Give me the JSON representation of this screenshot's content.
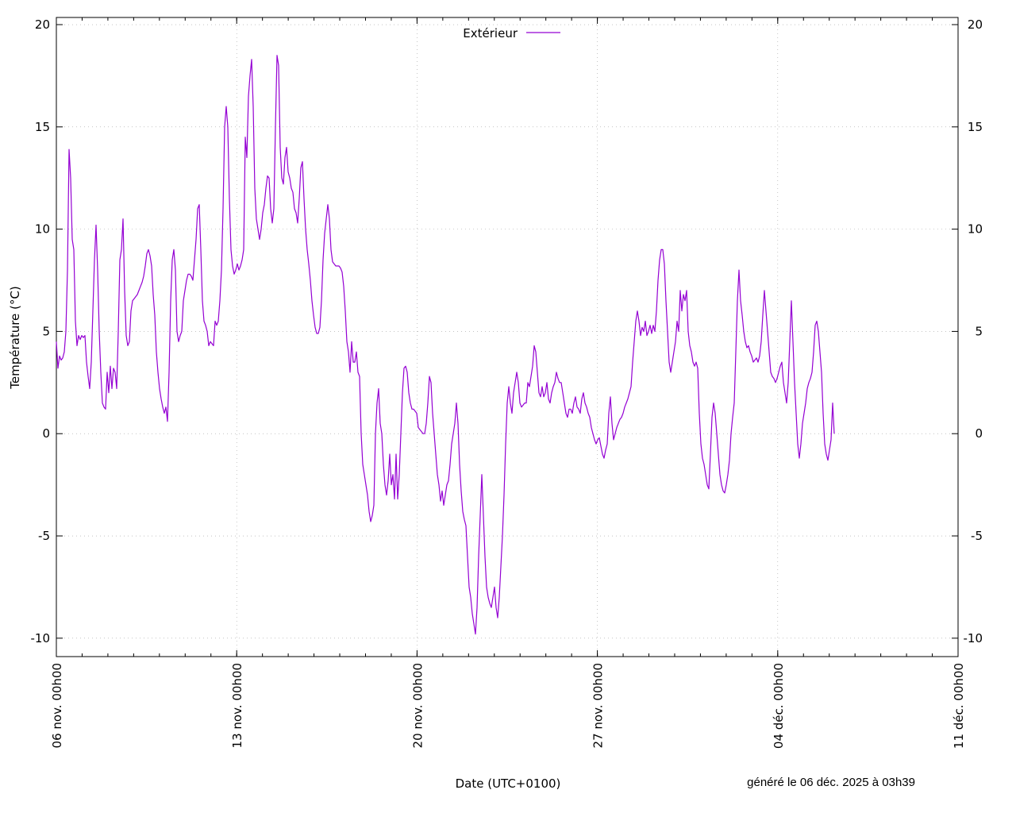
{
  "chart_data": {
    "type": "line",
    "title": "",
    "xlabel": "Date (UTC+0100)",
    "ylabel": "Température (°C)",
    "footer": "généré le 06 déc. 2025 à 03h39",
    "xlim_days": [
      0,
      35
    ],
    "ylim": [
      -10.9,
      20.35
    ],
    "x_unit": "days since 06 nov. 00h00",
    "x_ticks": [
      {
        "value": 0,
        "label": "06 nov. 00h00"
      },
      {
        "value": 7,
        "label": "13 nov. 00h00"
      },
      {
        "value": 14,
        "label": "20 nov. 00h00"
      },
      {
        "value": 21,
        "label": "27 nov. 00h00"
      },
      {
        "value": 28,
        "label": "04 déc. 00h00"
      },
      {
        "value": 35,
        "label": "11 déc. 00h00"
      }
    ],
    "x_minor_step_days": 1,
    "y_ticks": [
      {
        "value": 20,
        "label": "20"
      },
      {
        "value": 15,
        "label": "15"
      },
      {
        "value": 10,
        "label": "10"
      },
      {
        "value": 5,
        "label": "5"
      },
      {
        "value": 0,
        "label": "0"
      },
      {
        "value": -5,
        "label": "-5"
      },
      {
        "value": -10,
        "label": "-10"
      }
    ],
    "grid": true,
    "legend": {
      "position": "top-center",
      "entries": [
        "Extérieur"
      ]
    },
    "series": [
      {
        "name": "Extérieur",
        "color": "#9400d3",
        "x_start_days": 0,
        "x_step_days": 0.06162,
        "values": [
          4.5,
          3.2,
          3.8,
          3.6,
          3.7,
          4.0,
          5.0,
          8,
          13.9,
          12.5,
          9.5,
          9,
          5.5,
          4.3,
          4.8,
          4.6,
          4.8,
          4.7,
          4.8,
          3.5,
          2.8,
          2.2,
          3.5,
          6,
          8.5,
          10.2,
          8,
          5,
          3,
          1.5,
          1.3,
          1.2,
          3,
          2,
          3.3,
          2.2,
          3.2,
          3.0,
          2.2,
          5,
          8.5,
          9,
          10.5,
          7,
          4.8,
          4.3,
          4.5,
          6,
          6.5,
          6.6,
          6.7,
          6.8,
          7.0,
          7.2,
          7.4,
          7.7,
          8.2,
          8.8,
          9.0,
          8.7,
          8.2,
          6.8,
          5.8,
          4,
          3.0,
          2.2,
          1.7,
          1.3,
          1.0,
          1.3,
          0.6,
          3,
          6.5,
          8.5,
          9.0,
          8.0,
          5,
          4.5,
          4.8,
          5.0,
          6.5,
          7.0,
          7.5,
          7.8,
          7.8,
          7.7,
          7.5,
          8.5,
          9.5,
          11,
          11.2,
          9,
          6.5,
          5.5,
          5.3,
          5,
          4.3,
          4.5,
          4.4,
          4.3,
          5.5,
          5.3,
          5.5,
          6.5,
          8,
          11,
          15,
          16,
          15,
          11.5,
          9,
          8.2,
          7.8,
          8,
          8.3,
          8.0,
          8.2,
          8.5,
          9,
          14.5,
          13.5,
          16.5,
          17.5,
          18.3,
          16,
          12,
          10.5,
          10.0,
          9.5,
          10.0,
          10.8,
          11.2,
          12.0,
          12.6,
          12.5,
          11,
          10.3,
          11,
          15,
          18.5,
          18,
          14,
          12.5,
          12.2,
          13.5,
          14,
          12.8,
          12.5,
          12,
          11.8,
          11,
          10.8,
          10.3,
          11.5,
          13,
          13.3,
          11.5,
          10,
          9,
          8.3,
          7.5,
          6.5,
          5.8,
          5.2,
          4.9,
          4.9,
          5.2,
          6.5,
          8.5,
          9.8,
          10.5,
          11.2,
          10.5,
          9,
          8.4,
          8.3,
          8.2,
          8.2,
          8.2,
          8.1,
          7.9,
          7.2,
          6,
          4.5,
          4.0,
          3.0,
          4.5,
          3.5,
          3.5,
          4.0,
          3.0,
          2.8,
          0,
          -1.5,
          -2,
          -2.5,
          -3,
          -3.8,
          -4.3,
          -4,
          -3.5,
          0,
          1.5,
          2.2,
          0.5,
          0,
          -1.5,
          -2.5,
          -3,
          -2.3,
          -1,
          -2.5,
          -2.0,
          -3.2,
          -1.0,
          -3.2,
          -2,
          0,
          2,
          3.2,
          3.3,
          3,
          2,
          1.5,
          1.2,
          1.2,
          1.1,
          1.0,
          0.3,
          0.2,
          0.1,
          0.0,
          0.0,
          0.5,
          1.5,
          2.8,
          2.5,
          1,
          0,
          -1.0,
          -2,
          -2.5,
          -3.3,
          -2.8,
          -3.5,
          -3.0,
          -2.5,
          -2.3,
          -1.5,
          -0.5,
          0,
          0.5,
          1.5,
          0.5,
          -1.5,
          -2.8,
          -3.8,
          -4.2,
          -4.5,
          -6,
          -7.5,
          -8.0,
          -8.8,
          -9.3,
          -9.8,
          -8.5,
          -6,
          -4,
          -2,
          -4,
          -6,
          -7.5,
          -8.0,
          -8.3,
          -8.5,
          -8.0,
          -7.5,
          -8.5,
          -9.0,
          -8,
          -6.5,
          -5,
          -3,
          -0.5,
          1.5,
          2.3,
          1.5,
          1.0,
          2.0,
          2.5,
          3.0,
          2.5,
          1.5,
          1.3,
          1.4,
          1.5,
          1.5,
          2.5,
          2.3,
          2.8,
          3.3,
          4.3,
          4.0,
          3.0,
          2.0,
          1.8,
          2.3,
          1.8,
          2.0,
          2.5,
          1.7,
          1.5,
          2.0,
          2.3,
          2.5,
          3.0,
          2.7,
          2.5,
          2.5,
          2.0,
          1.5,
          1.0,
          0.8,
          1.2,
          1.2,
          1.0,
          1.5,
          1.8,
          1.3,
          1.2,
          1.0,
          1.7,
          2.0,
          1.5,
          1.3,
          1.0,
          0.8,
          0.3,
          0.0,
          -0.3,
          -0.5,
          -0.3,
          -0.2,
          -0.6,
          -1.0,
          -1.2,
          -0.8,
          -0.5,
          1.0,
          1.8,
          0.5,
          -0.3,
          0.0,
          0.3,
          0.5,
          0.7,
          0.8,
          1.0,
          1.3,
          1.5,
          1.7,
          2.0,
          2.3,
          3.5,
          4.5,
          5.5,
          6.0,
          5.5,
          4.8,
          5.2,
          5.0,
          5.5,
          4.8,
          5.0,
          5.3,
          4.9,
          5.3,
          5.0,
          6.0,
          7.5,
          8.5,
          9.0,
          9.0,
          8.3,
          6.5,
          5,
          3.5,
          3.0,
          3.5,
          4.0,
          4.5,
          5.5,
          5.0,
          7.0,
          6.0,
          6.8,
          6.5,
          7.0,
          5.0,
          4.3,
          4.0,
          3.5,
          3.3,
          3.5,
          3.2,
          1.0,
          -0.5,
          -1.2,
          -1.5,
          -2.0,
          -2.5,
          -2.7,
          -1.0,
          0.8,
          1.5,
          1.0,
          0,
          -1.0,
          -2.0,
          -2.5,
          -2.8,
          -2.9,
          -2.5,
          -2.0,
          -1.3,
          0.0,
          0.8,
          1.5,
          4,
          6.5,
          8.0,
          6.5,
          5.8,
          5.0,
          4.5,
          4.2,
          4.3,
          4.0,
          3.8,
          3.5,
          3.6,
          3.7,
          3.5,
          3.8,
          4.5,
          5.8,
          7.0,
          6.0,
          5.0,
          4.0,
          3.0,
          2.8,
          2.7,
          2.5,
          2.7,
          3.0,
          3.3,
          3.5,
          2.5,
          2.0,
          1.5,
          2.5,
          4.5,
          6.5,
          4.5,
          2.5,
          1.0,
          -0.5,
          -1.2,
          -0.5,
          0.5,
          1.0,
          1.5,
          2.2,
          2.5,
          2.7,
          3.0,
          4.0,
          5.3,
          5.5,
          5.0,
          4.0,
          3.0,
          1.0,
          -0.5,
          -1.0,
          -1.3,
          -0.8,
          -0.3,
          1.5,
          0.0
        ]
      }
    ]
  }
}
